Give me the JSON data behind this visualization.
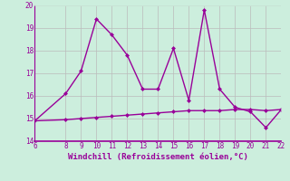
{
  "x_main": [
    6,
    8,
    9,
    10,
    11,
    12,
    13,
    14,
    15,
    16,
    17,
    18,
    19,
    20,
    21,
    22
  ],
  "y_main": [
    14.9,
    16.1,
    17.1,
    19.4,
    18.7,
    17.8,
    16.3,
    16.3,
    18.1,
    15.8,
    19.8,
    16.3,
    15.5,
    15.3,
    14.6,
    15.4
  ],
  "x_flat": [
    6,
    8,
    9,
    10,
    11,
    12,
    13,
    14,
    15,
    16,
    17,
    18,
    19,
    20,
    21,
    22
  ],
  "y_flat": [
    14.9,
    14.95,
    15.0,
    15.05,
    15.1,
    15.15,
    15.2,
    15.25,
    15.3,
    15.35,
    15.35,
    15.35,
    15.4,
    15.4,
    15.35,
    15.4
  ],
  "line_color": "#990099",
  "bg_color": "#cceedd",
  "grid_color": "#bbbbbb",
  "xlabel": "Windchill (Refroidissement éolien,°C)",
  "xlim": [
    6,
    22
  ],
  "ylim": [
    14,
    20
  ],
  "xticks": [
    6,
    8,
    9,
    10,
    11,
    12,
    13,
    14,
    15,
    16,
    17,
    18,
    19,
    20,
    21,
    22
  ],
  "yticks": [
    14,
    15,
    16,
    17,
    18,
    19,
    20
  ],
  "marker": "D",
  "markersize": 2.5,
  "linewidth": 1.0,
  "tick_labelsize": 5.5,
  "xlabel_fontsize": 6.5
}
